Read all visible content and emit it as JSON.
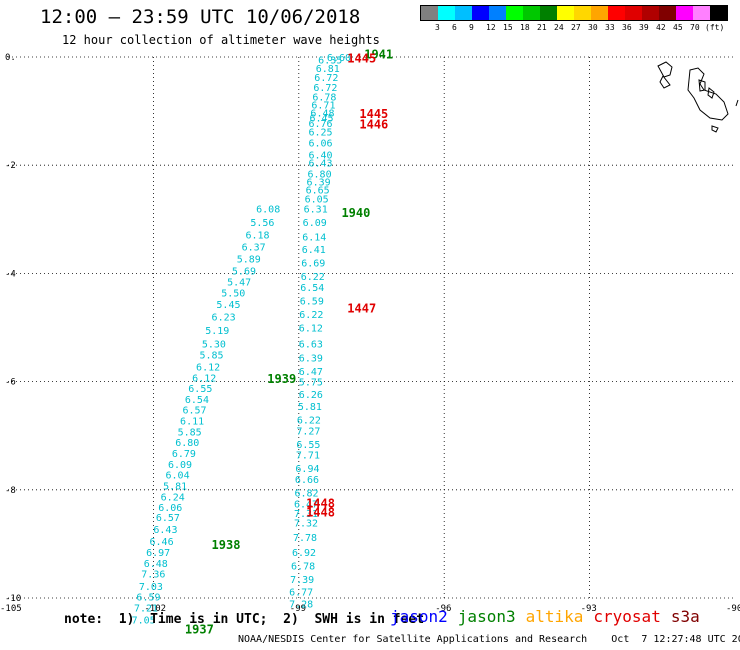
{
  "header": {
    "title": "12:00 — 23:59 UTC 10/06/2018",
    "subtitle": "12 hour collection of altimeter wave heights"
  },
  "legend": {
    "colors": [
      "#808080",
      "#00ffff",
      "#00bfff",
      "#0000ff",
      "#0080ff",
      "#00ff00",
      "#00c800",
      "#008000",
      "#ffff00",
      "#ffd700",
      "#ffa500",
      "#ff0000",
      "#e00000",
      "#b00000",
      "#800000",
      "#ff00ff",
      "#ff80ff",
      "#000000"
    ],
    "labels": [
      "3",
      "6",
      "9",
      "12",
      "15",
      "18",
      "21",
      "24",
      "27",
      "30",
      "33",
      "36",
      "39",
      "42",
      "45",
      "70",
      "(ft)"
    ]
  },
  "map": {
    "lon_ticks": [
      "-105",
      "-102",
      "-99",
      "-96",
      "-93",
      "-90"
    ],
    "lat_ticks": [
      "0.",
      "-2",
      "-4",
      "-6",
      "-8",
      "-10"
    ],
    "track_color": "#00bfcf",
    "tracks": [
      {
        "values": [
          "6.60",
          "6.35",
          "6.81",
          "6.72",
          "6.72",
          "6.78",
          "6.71",
          "6.48",
          "6.45",
          "6.76",
          "6.25",
          "6.06",
          "6.40",
          "6.43",
          "6.80",
          "6.39",
          "6.65",
          "6.05",
          "6.31",
          "6.09",
          "6.14",
          "6.41",
          "6.69",
          "6.22",
          "6.54",
          "6.59",
          "6.22",
          "6.12",
          "6.63",
          "6.39",
          "6.47",
          "5.75",
          "6.26",
          "5.81",
          "6.22",
          "7.27",
          "6.55",
          "7.71",
          "6.94",
          "6.66",
          "6.82",
          "6.47",
          "7.31",
          "7.32",
          "7.78",
          "6.92",
          "6.78",
          "7.39",
          "6.77",
          "7.28"
        ],
        "lats": [
          -0.0,
          -0.05,
          -0.2,
          -0.37,
          -0.55,
          -0.73,
          -0.88,
          -1.03,
          -1.12,
          -1.22,
          -1.38,
          -1.58,
          -1.8,
          -1.95,
          -2.15,
          -2.3,
          -2.45,
          -2.62,
          -2.8,
          -3.05,
          -3.32,
          -3.55,
          -3.8,
          -4.05,
          -4.25,
          -4.5,
          -4.75,
          -5.0,
          -5.3,
          -5.55,
          -5.8,
          -6.0,
          -6.23,
          -6.45,
          -6.7,
          -6.9,
          -7.15,
          -7.35,
          -7.6,
          -7.8,
          -8.05,
          -8.25,
          -8.43,
          -8.6,
          -8.87,
          -9.15,
          -9.4,
          -9.65,
          -9.88,
          -10.1
        ],
        "lons": [
          -98.42,
          -98.6,
          -98.65,
          -98.68,
          -98.7,
          -98.72,
          -98.74,
          -98.76,
          -98.78,
          -98.8,
          -98.8,
          -98.8,
          -98.8,
          -98.8,
          -98.82,
          -98.84,
          -98.86,
          -98.88,
          -98.9,
          -98.92,
          -98.93,
          -98.94,
          -98.95,
          -98.96,
          -98.97,
          -98.98,
          -98.99,
          -99.0,
          -99.0,
          -99.0,
          -99.0,
          -99.0,
          -99.0,
          -99.02,
          -99.04,
          -99.05,
          -99.05,
          -99.06,
          -99.07,
          -99.08,
          -99.09,
          -99.1,
          -99.1,
          -99.1,
          -99.12,
          -99.14,
          -99.16,
          -99.18,
          -99.2,
          -99.2
        ]
      },
      {
        "values": [
          "6.08",
          "5.56",
          "6.18",
          "6.37",
          "5.89",
          "5.69",
          "5.47",
          "5.50",
          "5.45",
          "6.23",
          "5.19",
          "5.30",
          "5.85",
          "6.12",
          "6.12",
          "6.55",
          "6.54",
          "6.57",
          "6.11",
          "5.85",
          "6.80",
          "6.79",
          "6.09",
          "6.04",
          "5.81",
          "6.24",
          "6.06",
          "6.57",
          "6.43",
          "6.46",
          "6.97",
          "6.48",
          "7.36",
          "7.03",
          "6.59",
          "7.21",
          "7.05"
        ],
        "lats": [
          -2.8,
          -3.05,
          -3.28,
          -3.5,
          -3.72,
          -3.95,
          -4.15,
          -4.35,
          -4.57,
          -4.8,
          -5.05,
          -5.3,
          -5.5,
          -5.72,
          -5.92,
          -6.12,
          -6.32,
          -6.52,
          -6.72,
          -6.92,
          -7.12,
          -7.32,
          -7.52,
          -7.72,
          -7.92,
          -8.12,
          -8.32,
          -8.5,
          -8.72,
          -8.95,
          -9.15,
          -9.35,
          -9.55,
          -9.78,
          -9.97,
          -10.18,
          -10.4
        ],
        "lons": [
          -99.88,
          -100.0,
          -100.1,
          -100.18,
          -100.28,
          -100.38,
          -100.48,
          -100.6,
          -100.7,
          -100.8,
          -100.93,
          -101.0,
          -101.05,
          -101.12,
          -101.2,
          -101.28,
          -101.35,
          -101.4,
          -101.45,
          -101.5,
          -101.55,
          -101.62,
          -101.7,
          -101.75,
          -101.8,
          -101.85,
          -101.9,
          -101.95,
          -102.0,
          -102.08,
          -102.15,
          -102.2,
          -102.25,
          -102.3,
          -102.35,
          -102.4,
          -102.45
        ]
      }
    ],
    "passes": [
      {
        "label": "1941",
        "color": "#008000",
        "lat": 0.05,
        "lon": -97.65
      },
      {
        "label": "1445",
        "color": "#e00000",
        "lat": -0.03,
        "lon": -98.0
      },
      {
        "label": "1445",
        "color": "#e00000",
        "lat": -1.05,
        "lon": -97.75
      },
      {
        "label": "1446",
        "color": "#e00000",
        "lat": -1.25,
        "lon": -97.75
      },
      {
        "label": "1940",
        "color": "#008000",
        "lat": -2.88,
        "lon": -98.12
      },
      {
        "label": "1447",
        "color": "#e00000",
        "lat": -4.65,
        "lon": -98.0
      },
      {
        "label": "1939",
        "color": "#008000",
        "lat": -5.95,
        "lon": -99.65
      },
      {
        "label": "1448",
        "color": "#e00000",
        "lat": -8.25,
        "lon": -98.85
      },
      {
        "label": "1448",
        "color": "#e00000",
        "lat": -8.42,
        "lon": -98.85
      },
      {
        "label": "1938",
        "color": "#008000",
        "lat": -9.02,
        "lon": -100.8
      },
      {
        "label": "1937",
        "color": "#008000",
        "lat": -10.58,
        "lon": -101.35
      }
    ]
  },
  "footer": {
    "note": "note:  1)  Time is in UTC;  2)  SWH is in feet",
    "credit": "NOAA/NESDIS Center for Satellite Applications and Research    Oct  7 12:27:48 UTC 2018",
    "satellites": [
      {
        "name": "jason2",
        "color": "#0000ff"
      },
      {
        "name": "jason3",
        "color": "#008000"
      },
      {
        "name": "altika",
        "color": "#ffa500"
      },
      {
        "name": "cryosat",
        "color": "#e00000"
      },
      {
        "name": "s3a",
        "color": "#800000"
      }
    ]
  }
}
